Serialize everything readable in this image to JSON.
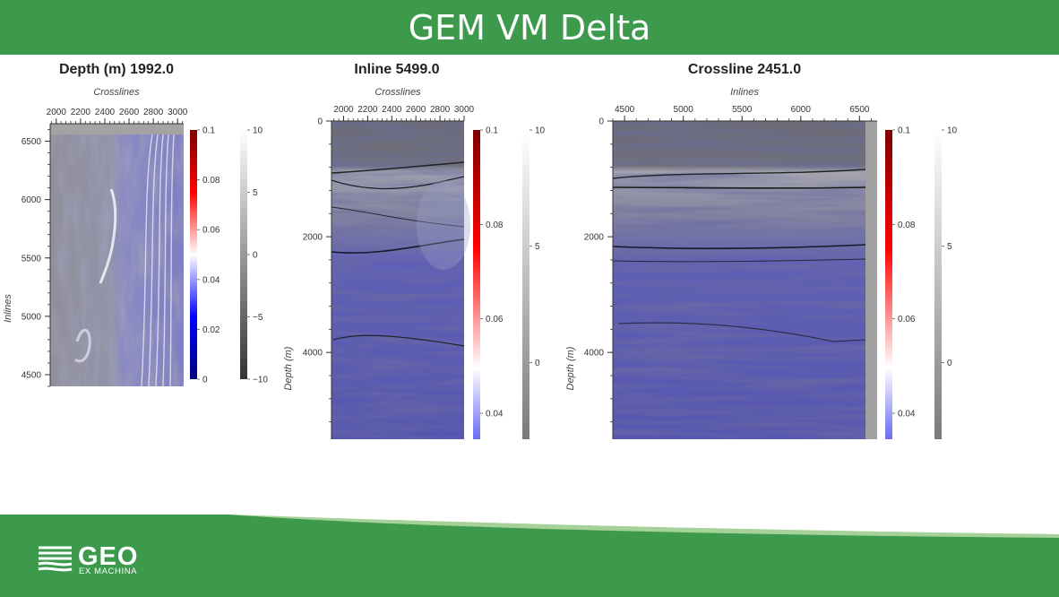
{
  "header": {
    "title": "GEM VM Delta"
  },
  "footer": {
    "logo_main": "GEO",
    "logo_sub": "EX MACHINA",
    "colors": {
      "dark_green": "#3d9a4d",
      "light_green": "#a6d29a"
    }
  },
  "colormaps": {
    "velocity": [
      "#00007f",
      "#0000ff",
      "#ffffff",
      "#ff0000",
      "#7f0000"
    ],
    "seismic": [
      "#333333",
      "#ffffff"
    ]
  },
  "chart_data": [
    {
      "type": "heatmap",
      "id": "depth-slice",
      "title": "Depth (m) 1992.0",
      "xlabel": "Crosslines",
      "ylabel": "Inlines",
      "xlim": [
        1950,
        3050
      ],
      "ylim": [
        4400,
        6650
      ],
      "xticks": [
        2000,
        2200,
        2400,
        2600,
        2800,
        3000
      ],
      "yticks": [
        4500,
        5000,
        5500,
        6000,
        6500
      ],
      "colorbar1": {
        "min": 0,
        "max": 0.1,
        "ticks": [
          0,
          0.02,
          0.04,
          0.06,
          0.08,
          0.1
        ],
        "labels": [
          "0",
          "0.02",
          "0.04",
          "0.06",
          "0.08",
          "0.1"
        ]
      },
      "colorbar2": {
        "min": -10,
        "max": 10,
        "ticks": [
          -10,
          -5,
          0,
          5,
          10
        ],
        "labels": [
          "−10",
          "−5",
          "0",
          "5",
          "10"
        ]
      }
    },
    {
      "type": "heatmap",
      "id": "inline-section",
      "title": "Inline 5499.0",
      "xlabel": "Crosslines",
      "ylabel": "Depth (m)",
      "xlim": [
        1900,
        3000
      ],
      "ylim": [
        5500,
        0
      ],
      "xticks": [
        2000,
        2200,
        2400,
        2600,
        2800,
        3000
      ],
      "yticks": [
        0,
        2000,
        4000
      ],
      "colorbar1": {
        "min": 0.0345,
        "max": 0.1,
        "ticks": [
          0.04,
          0.06,
          0.08,
          0.1
        ],
        "labels": [
          "0.04",
          "0.06",
          "0.08",
          "0.1"
        ]
      },
      "colorbar2": {
        "min": -3.3,
        "max": 10,
        "ticks": [
          0,
          5,
          10
        ],
        "labels": [
          "0",
          "5",
          "10"
        ]
      }
    },
    {
      "type": "heatmap",
      "id": "crossline-section",
      "title": "Crossline 2451.0",
      "xlabel": "Inlines",
      "ylabel": "Depth (m)",
      "xlim": [
        4400,
        6650
      ],
      "ylim": [
        5500,
        0
      ],
      "xticks": [
        4500,
        5000,
        5500,
        6000,
        6500
      ],
      "yticks": [
        0,
        2000,
        4000
      ],
      "colorbar1": {
        "min": 0.0345,
        "max": 0.1,
        "ticks": [
          0.04,
          0.06,
          0.08,
          0.1
        ],
        "labels": [
          "0.04",
          "0.06",
          "0.08",
          "0.1"
        ]
      },
      "colorbar2": {
        "min": -3.3,
        "max": 10,
        "ticks": [
          0,
          5,
          10
        ],
        "labels": [
          "0",
          "5",
          "10"
        ]
      }
    }
  ]
}
